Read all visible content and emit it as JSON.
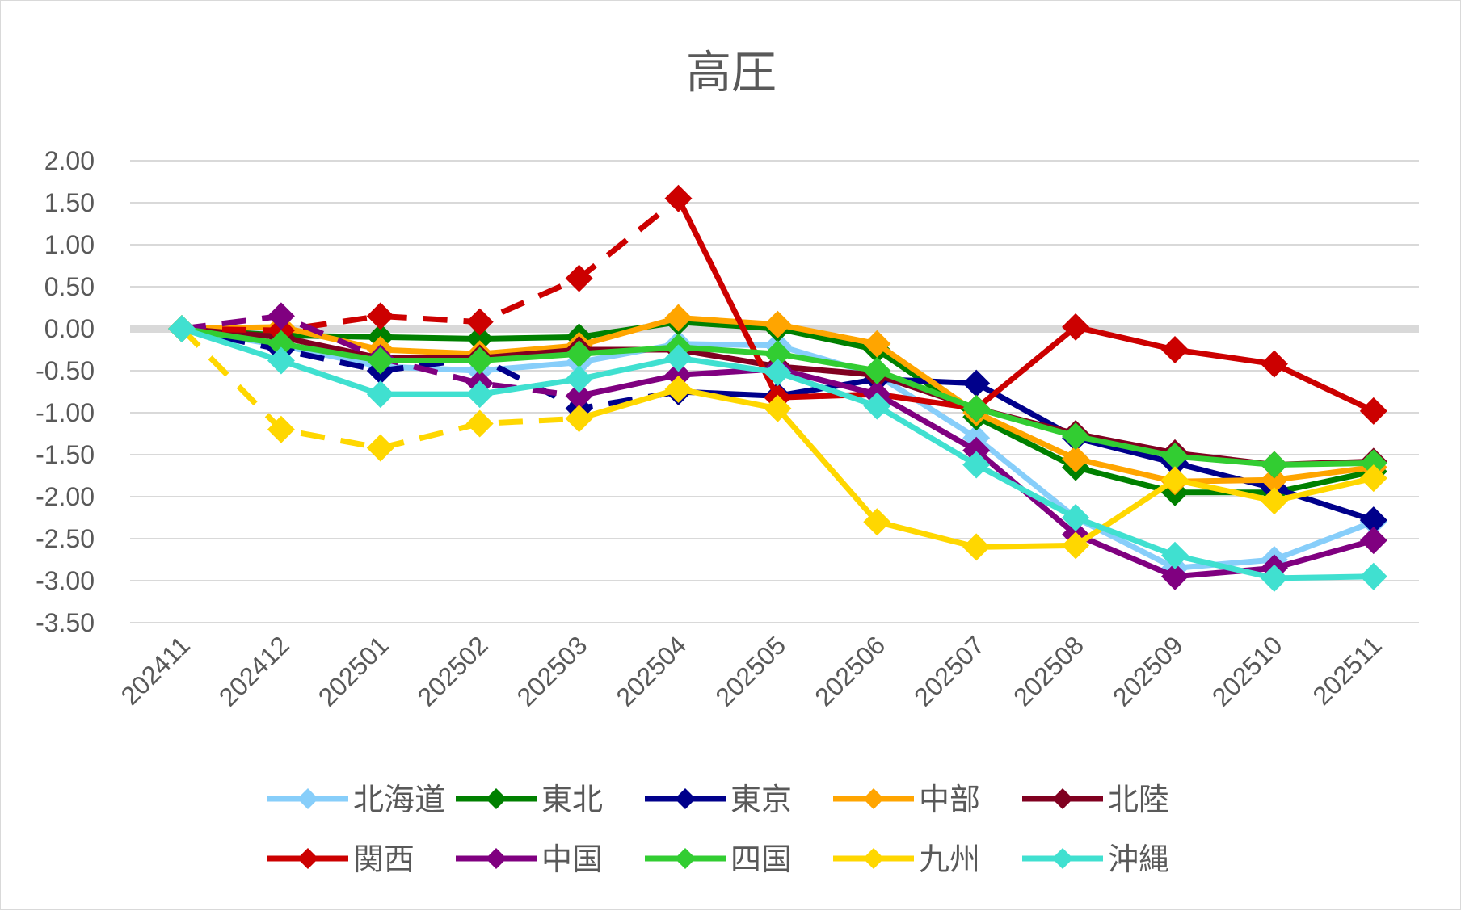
{
  "chart_data": {
    "type": "line",
    "title": "高圧",
    "xlabel": "",
    "ylabel": "",
    "ylim": [
      -3.5,
      2.0
    ],
    "ytick_labels": [
      "2.00",
      "1.50",
      "1.00",
      "0.50",
      "0.00",
      "-0.50",
      "-1.00",
      "-1.50",
      "-2.00",
      "-2.50",
      "-3.00",
      "-3.50"
    ],
    "grid": true,
    "legend_position": "bottom",
    "categories": [
      "202411",
      "202412",
      "202501",
      "202502",
      "202503",
      "202504",
      "202505",
      "202506",
      "202507",
      "202508",
      "202509",
      "202510",
      "202511"
    ],
    "dashed_segments_note_excluded": true,
    "series": [
      {
        "name": "北海道",
        "color": "#87cefa",
        "dashed_until": 0,
        "values": [
          0,
          -0.2,
          -0.45,
          -0.5,
          -0.4,
          -0.18,
          -0.2,
          -0.55,
          -1.3,
          -2.25,
          -2.85,
          -2.75,
          -2.3
        ]
      },
      {
        "name": "東北",
        "color": "#008000",
        "dashed_until": 0,
        "values": [
          0,
          -0.08,
          -0.1,
          -0.12,
          -0.1,
          0.08,
          0.0,
          -0.25,
          -1.05,
          -1.65,
          -1.95,
          -1.95,
          -1.7
        ]
      },
      {
        "name": "東京",
        "color": "#00008b",
        "dashed_until": 5,
        "values": [
          0,
          -0.25,
          -0.5,
          -0.35,
          -0.95,
          -0.75,
          -0.8,
          -0.6,
          -0.65,
          -1.3,
          -1.6,
          -1.9,
          -2.28
        ]
      },
      {
        "name": "中部",
        "color": "#ffa500",
        "dashed_until": 0,
        "values": [
          0,
          0.02,
          -0.25,
          -0.3,
          -0.2,
          0.13,
          0.05,
          -0.18,
          -1.0,
          -1.55,
          -1.82,
          -1.8,
          -1.65
        ]
      },
      {
        "name": "北陸",
        "color": "#800020",
        "dashed_until": 0,
        "values": [
          0,
          -0.1,
          -0.35,
          -0.35,
          -0.25,
          -0.25,
          -0.45,
          -0.55,
          -0.95,
          -1.25,
          -1.48,
          -1.62,
          -1.58
        ]
      },
      {
        "name": "関西",
        "color": "#cc0000",
        "dashed_until": 5,
        "values": [
          0,
          -0.02,
          0.15,
          0.08,
          0.6,
          1.55,
          -0.82,
          -0.78,
          -0.95,
          0.02,
          -0.25,
          -0.42,
          -0.98
        ]
      },
      {
        "name": "中国",
        "color": "#800080",
        "dashed_until": 4,
        "values": [
          0,
          0.15,
          -0.35,
          -0.65,
          -0.8,
          -0.55,
          -0.48,
          -0.78,
          -1.45,
          -2.45,
          -2.95,
          -2.85,
          -2.52
        ]
      },
      {
        "name": "四国",
        "color": "#32cd32",
        "dashed_until": 0,
        "values": [
          0,
          -0.18,
          -0.38,
          -0.38,
          -0.3,
          -0.22,
          -0.3,
          -0.5,
          -0.95,
          -1.28,
          -1.52,
          -1.62,
          -1.6
        ]
      },
      {
        "name": "九州",
        "color": "#ffd700",
        "dashed_until": 4,
        "values": [
          0,
          -1.2,
          -1.42,
          -1.13,
          -1.07,
          -0.72,
          -0.95,
          -2.3,
          -2.6,
          -2.58,
          -1.8,
          -2.05,
          -1.78
        ]
      },
      {
        "name": "沖縄",
        "color": "#40e0d0",
        "dashed_until": 0,
        "values": [
          0,
          -0.38,
          -0.78,
          -0.78,
          -0.6,
          -0.35,
          -0.52,
          -0.92,
          -1.62,
          -2.25,
          -2.7,
          -2.97,
          -2.95
        ]
      }
    ]
  }
}
